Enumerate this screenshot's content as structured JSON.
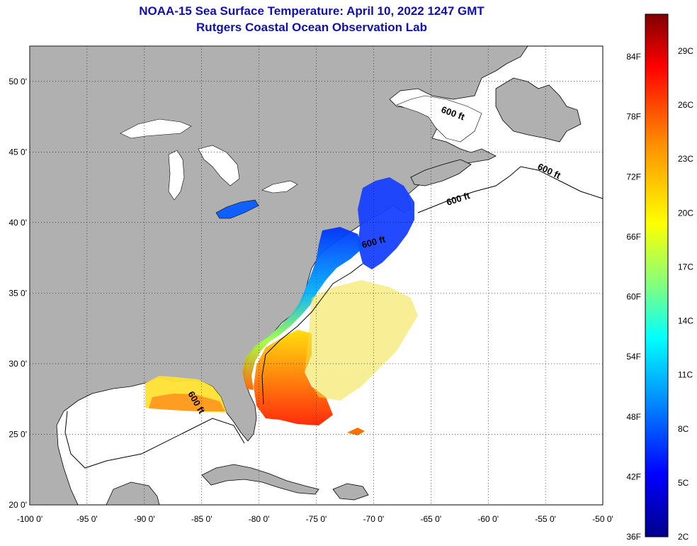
{
  "title": {
    "line1": "NOAA-15 Sea Surface Temperature:  April 10, 2022 1247 GMT",
    "line2": "Rutgers Coastal Ocean Observation Lab"
  },
  "map": {
    "lon_range": [
      -100,
      -50
    ],
    "lat_range": [
      20,
      52.5
    ],
    "lon_ticks": [
      "-100 0'",
      "-95 0'",
      "-90 0'",
      "-85 0'",
      "-80 0'",
      "-75 0'",
      "-70 0'",
      "-65 0'",
      "-60 0'",
      "-55 0'",
      "-50 0'"
    ],
    "lat_ticks": [
      "20 0'",
      "25 0'",
      "30 0'",
      "35 0'",
      "40 0'",
      "45 0'",
      "50 0'"
    ],
    "grid": "dotted",
    "land_color": "#b0b0b0",
    "no_data_color": "#ffffff",
    "contour_label": "600 ft"
  },
  "colorbar": {
    "fahrenheit_labels": [
      "84F",
      "78F",
      "72F",
      "66F",
      "60F",
      "54F",
      "48F",
      "42F",
      "36F"
    ],
    "celsius_labels": [
      "29C",
      "26C",
      "23C",
      "20C",
      "17C",
      "14C",
      "11C",
      "8C",
      "5C",
      "2C"
    ],
    "colors": [
      "#00008b",
      "#0000ff",
      "#00a0ff",
      "#00ffff",
      "#80ff80",
      "#ffff00",
      "#ff9000",
      "#ff0000",
      "#800000"
    ]
  }
}
